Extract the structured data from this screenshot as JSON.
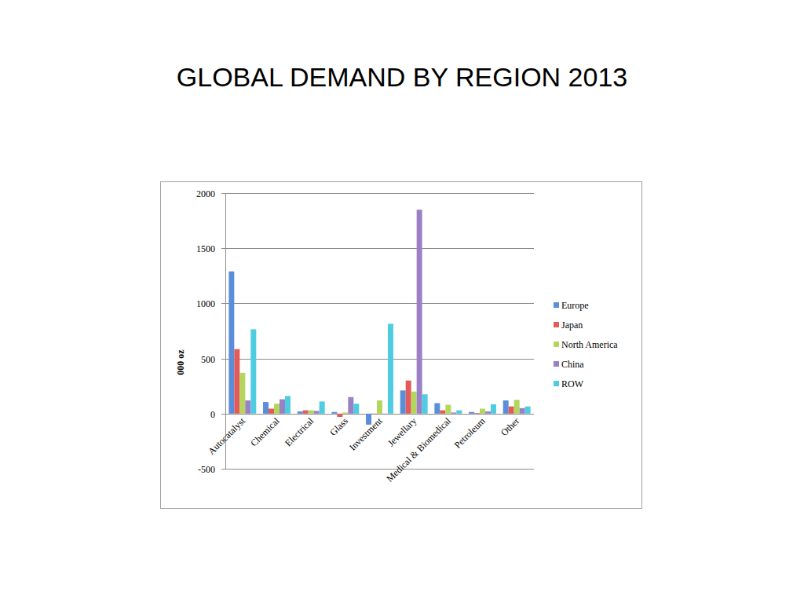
{
  "chart_data": {
    "type": "bar",
    "title": "GLOBAL DEMAND BY REGION 2013",
    "y_label": "000 oz",
    "categories": [
      "Autocatalyst",
      "Chemical",
      "Electrical",
      "Glass",
      "Investment",
      "Jewellary",
      "Medical & Biomedical",
      "Petroleum",
      "Other"
    ],
    "series": [
      {
        "name": "Europe",
        "color": "#5b8ed8",
        "values": [
          1290,
          105,
          20,
          15,
          -100,
          210,
          95,
          15,
          120
        ]
      },
      {
        "name": "Japan",
        "color": "#e25b5b",
        "values": [
          585,
          45,
          30,
          -30,
          -5,
          300,
          30,
          5,
          65
        ]
      },
      {
        "name": "North America",
        "color": "#b3d65c",
        "values": [
          370,
          90,
          30,
          10,
          120,
          200,
          80,
          45,
          125
        ]
      },
      {
        "name": "China",
        "color": "#9c80c6",
        "values": [
          120,
          130,
          25,
          150,
          0,
          1850,
          10,
          20,
          50
        ]
      },
      {
        "name": "ROW",
        "color": "#4ecde0",
        "values": [
          765,
          160,
          110,
          90,
          815,
          175,
          30,
          85,
          65
        ]
      }
    ],
    "ylim": [
      -500,
      2000
    ],
    "yticks": [
      -500,
      0,
      500,
      1000,
      1500,
      2000
    ],
    "grid": true,
    "legend": "right"
  }
}
